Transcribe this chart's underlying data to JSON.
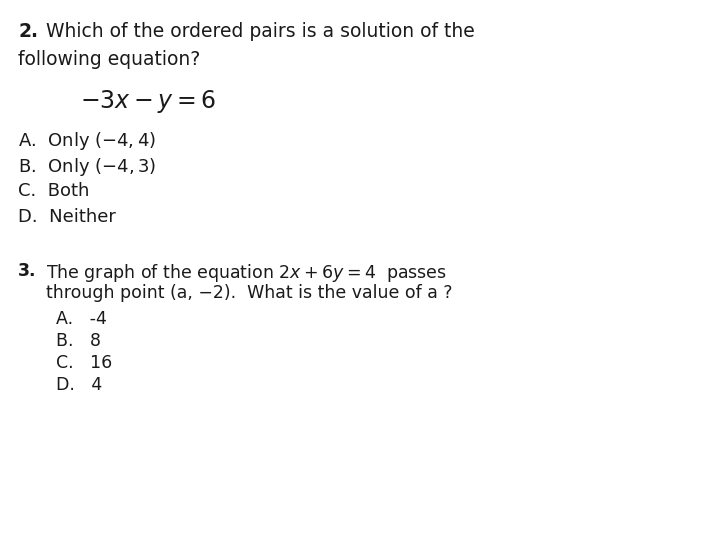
{
  "background_color": "#ffffff",
  "text_color": "#1a1a1a",
  "q2_number": "2.",
  "q2_line1": " Which of the ordered pairs is a solution of the",
  "q2_line2": "following equation?",
  "q2_equation": "$-3x - y = 6$",
  "q2_options": [
    "A.  Only $(-4, 4)$",
    "B.  Only $(-4, 3)$",
    "C.  Both",
    "D.  Neither"
  ],
  "q3_number": "3.",
  "q3_line1": "The graph of the equation $2x + 6y = 4$  passes",
  "q3_line2": "through point (a, −2).  What is the value of a ?",
  "q3_options": [
    "A.   -4",
    "B.   8",
    "C.   16",
    "D.   4"
  ],
  "fs_header": 13.5,
  "fs_eq": 14,
  "fs_options": 13,
  "fs_q3": 12.5
}
